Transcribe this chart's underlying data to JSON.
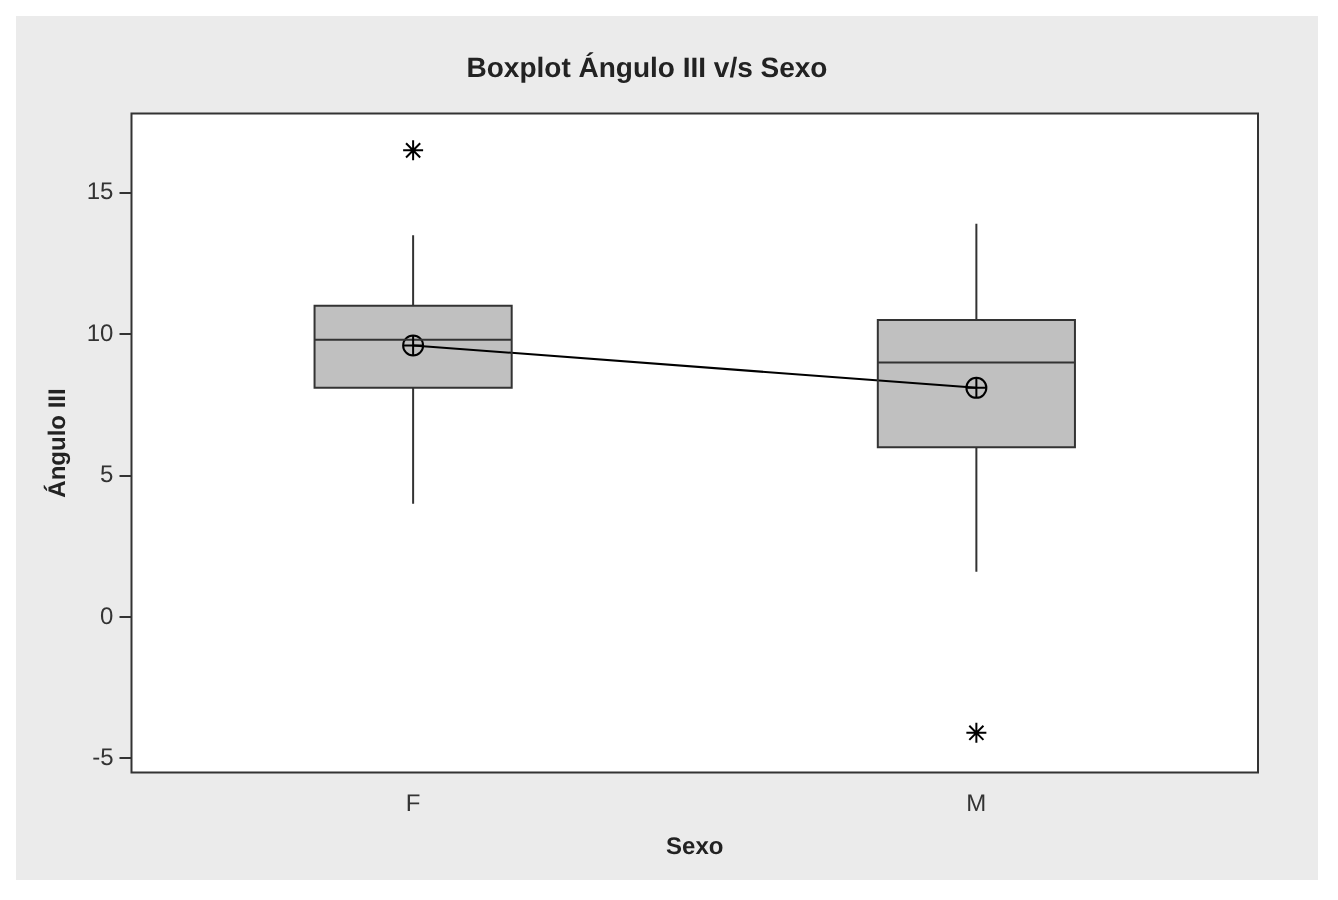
{
  "chart_data": {
    "type": "box",
    "title": "Boxplot Ángulo III v/s Sexo",
    "xlabel": "Sexo",
    "ylabel": "Ángulo III",
    "categories": [
      "F",
      "M"
    ],
    "boxes": [
      {
        "low": 4.0,
        "q1": 8.1,
        "median": 9.8,
        "q3": 11.0,
        "high": 13.5,
        "outliers": [
          16.5
        ]
      },
      {
        "low": 1.6,
        "q1": 6.0,
        "median": 9.0,
        "q3": 10.5,
        "high": 13.9,
        "outliers": [
          -4.1
        ]
      }
    ],
    "color": "#c0c0c0",
    "series": [
      {
        "type": "line",
        "color": "#000000",
        "values": [
          9.6,
          8.1
        ],
        "marker": "circle"
      }
    ],
    "ylim": [
      -5.5,
      17.8
    ],
    "yticks": [
      -5,
      0,
      5,
      10,
      15
    ],
    "grid": false,
    "legend": false
  }
}
